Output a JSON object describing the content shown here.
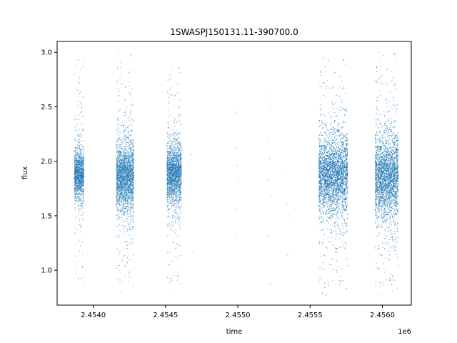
{
  "chart_data": {
    "type": "scatter",
    "title": "1SWASPJ150131.11-390700.0",
    "xlabel": "time",
    "ylabel": "flux",
    "x_offset_label": "1e6",
    "xlim": [
      2453750,
      2456200
    ],
    "ylim": [
      0.68,
      3.1
    ],
    "x_ticks": [
      2454000,
      2454500,
      2455000,
      2455500,
      2456000
    ],
    "x_tick_labels": [
      "2.4540",
      "2.4545",
      "2.4550",
      "2.4555",
      "2.4560"
    ],
    "y_ticks": [
      1.0,
      1.5,
      2.0,
      2.5,
      3.0
    ],
    "y_tick_labels": [
      "1.0",
      "1.5",
      "2.0",
      "2.5",
      "3.0"
    ],
    "grid": false,
    "point_color": "#1f77b4",
    "clusters": [
      {
        "x_range": [
          2453870,
          2453935
        ],
        "center": 1.88,
        "spread": 0.11,
        "y_min": 0.82,
        "y_max": 3.0
      },
      {
        "x_range": [
          2454160,
          2454280
        ],
        "center": 1.86,
        "spread": 0.15,
        "y_min": 0.8,
        "y_max": 3.0
      },
      {
        "x_range": [
          2454510,
          2454610
        ],
        "center": 1.89,
        "spread": 0.13,
        "y_min": 0.82,
        "y_max": 2.88
      },
      {
        "x_range": [
          2455560,
          2455760
        ],
        "center": 1.88,
        "spread": 0.17,
        "y_min": 0.77,
        "y_max": 2.96
      },
      {
        "x_range": [
          2455950,
          2456110
        ],
        "center": 1.86,
        "spread": 0.18,
        "y_min": 0.77,
        "y_max": 3.01
      }
    ],
    "sparse_points": [
      {
        "x": 2454680,
        "y": 2.06
      },
      {
        "x": 2454690,
        "y": 1.17
      },
      {
        "x": 2454660,
        "y": 2.0
      },
      {
        "x": 2454985,
        "y": 2.45
      },
      {
        "x": 2454990,
        "y": 2.12
      },
      {
        "x": 2454995,
        "y": 1.96
      },
      {
        "x": 2454990,
        "y": 1.56
      },
      {
        "x": 2454985,
        "y": 1.33
      },
      {
        "x": 2455000,
        "y": 1.81
      },
      {
        "x": 2455200,
        "y": 2.6
      },
      {
        "x": 2455210,
        "y": 2.18
      },
      {
        "x": 2455220,
        "y": 2.03
      },
      {
        "x": 2455225,
        "y": 2.48
      },
      {
        "x": 2455215,
        "y": 1.83
      },
      {
        "x": 2455230,
        "y": 1.68
      },
      {
        "x": 2455225,
        "y": 0.88
      },
      {
        "x": 2455205,
        "y": 1.31
      },
      {
        "x": 2455340,
        "y": 1.6
      },
      {
        "x": 2455345,
        "y": 1.14
      },
      {
        "x": 2455350,
        "y": 1.5
      },
      {
        "x": 2455330,
        "y": 1.91
      }
    ]
  }
}
